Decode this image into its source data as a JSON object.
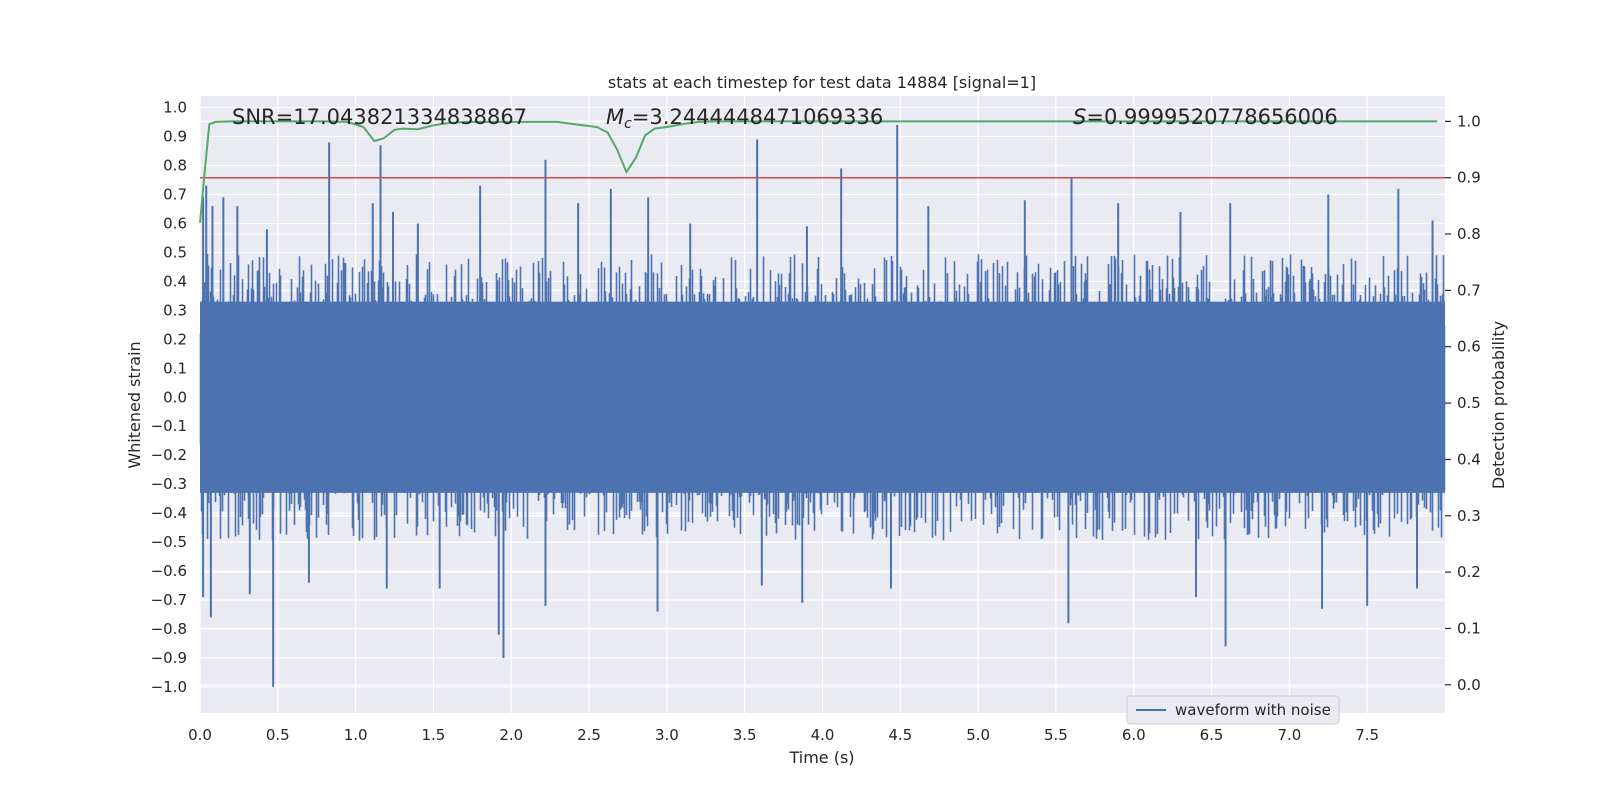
{
  "chart_data": {
    "type": "line",
    "title": "stats at each timestep for test data 14884 [signal=1]",
    "xlabel": "Time (s)",
    "ylabel_left": "Whitened strain",
    "ylabel_right": "Detection probability",
    "xlim": [
      0.0,
      8.0
    ],
    "ylim_left": [
      -1.09,
      1.04
    ],
    "ylim_right": [
      -0.05,
      1.045
    ],
    "x_ticks": [
      "0.0",
      "0.5",
      "1.0",
      "1.5",
      "2.0",
      "2.5",
      "3.0",
      "3.5",
      "4.0",
      "4.5",
      "5.0",
      "5.5",
      "6.0",
      "6.5",
      "7.0",
      "7.5"
    ],
    "y_ticks_left": [
      "1.0",
      "0.9",
      "0.8",
      "0.7",
      "0.6",
      "0.5",
      "0.4",
      "0.3",
      "0.2",
      "0.1",
      "0.0",
      "−0.1",
      "−0.2",
      "−0.3",
      "−0.4",
      "−0.5",
      "−0.6",
      "−0.7",
      "−0.8",
      "−0.9",
      "−1.0"
    ],
    "y_ticks_right": [
      "1.0",
      "0.9",
      "0.8",
      "0.7",
      "0.6",
      "0.5",
      "0.4",
      "0.3",
      "0.2",
      "0.1",
      "0.0"
    ],
    "grid": true,
    "annotations": {
      "snr": "SNR=17.043821334838867",
      "mc_symbol": "M",
      "mc_sub": "c",
      "mc_value": "=3.2444448471069336",
      "s_symbol": "S",
      "s_value": "=0.9999520778656006"
    },
    "threshold": {
      "value": 0.9,
      "axis": "right",
      "color": "#c44e52"
    },
    "series": [
      {
        "name": "waveform with noise",
        "axis": "left",
        "color": "#4c72b0",
        "style": "dense-noise",
        "typical_amplitude": 0.45,
        "spikes": [
          {
            "x": 0.02,
            "y": 0.69
          },
          {
            "x": 0.04,
            "y": 0.73
          },
          {
            "x": 0.08,
            "y": 0.66
          },
          {
            "x": 0.15,
            "y": 0.69
          },
          {
            "x": 0.24,
            "y": 0.66
          },
          {
            "x": 0.43,
            "y": 0.58
          },
          {
            "x": 0.83,
            "y": 0.88
          },
          {
            "x": 1.11,
            "y": 0.67
          },
          {
            "x": 1.16,
            "y": 0.87
          },
          {
            "x": 1.24,
            "y": 0.64
          },
          {
            "x": 1.4,
            "y": 0.6
          },
          {
            "x": 1.8,
            "y": 0.73
          },
          {
            "x": 2.22,
            "y": 0.82
          },
          {
            "x": 2.43,
            "y": 0.67
          },
          {
            "x": 2.64,
            "y": 0.72
          },
          {
            "x": 2.88,
            "y": 0.69
          },
          {
            "x": 3.15,
            "y": 0.6
          },
          {
            "x": 3.58,
            "y": 0.89
          },
          {
            "x": 3.9,
            "y": 0.59
          },
          {
            "x": 4.12,
            "y": 0.79
          },
          {
            "x": 4.48,
            "y": 0.94
          },
          {
            "x": 4.68,
            "y": 0.66
          },
          {
            "x": 5.3,
            "y": 0.68
          },
          {
            "x": 5.6,
            "y": 0.76
          },
          {
            "x": 5.9,
            "y": 0.67
          },
          {
            "x": 6.3,
            "y": 0.64
          },
          {
            "x": 6.62,
            "y": 0.67
          },
          {
            "x": 7.25,
            "y": 0.7
          },
          {
            "x": 7.7,
            "y": 0.72
          },
          {
            "x": 7.92,
            "y": 0.61
          },
          {
            "x": 0.02,
            "y": -0.69
          },
          {
            "x": 0.07,
            "y": -0.76
          },
          {
            "x": 0.32,
            "y": -0.68
          },
          {
            "x": 0.47,
            "y": -1.0
          },
          {
            "x": 0.7,
            "y": -0.64
          },
          {
            "x": 1.2,
            "y": -0.66
          },
          {
            "x": 1.54,
            "y": -0.66
          },
          {
            "x": 1.92,
            "y": -0.82
          },
          {
            "x": 1.95,
            "y": -0.9
          },
          {
            "x": 2.22,
            "y": -0.72
          },
          {
            "x": 2.94,
            "y": -0.74
          },
          {
            "x": 3.61,
            "y": -0.65
          },
          {
            "x": 3.87,
            "y": -0.71
          },
          {
            "x": 4.44,
            "y": -0.66
          },
          {
            "x": 5.58,
            "y": -0.78
          },
          {
            "x": 6.4,
            "y": -0.69
          },
          {
            "x": 6.59,
            "y": -0.86
          },
          {
            "x": 7.21,
            "y": -0.73
          },
          {
            "x": 7.5,
            "y": -0.72
          },
          {
            "x": 7.82,
            "y": -0.66
          }
        ]
      },
      {
        "name": "",
        "axis": "right",
        "color": "#55a868",
        "x": [
          0.0,
          0.03,
          0.06,
          0.1,
          0.2,
          0.5,
          0.8,
          0.95,
          1.05,
          1.12,
          1.18,
          1.25,
          1.3,
          1.4,
          1.5,
          1.6,
          1.7,
          2.0,
          2.3,
          2.4,
          2.55,
          2.62,
          2.68,
          2.74,
          2.8,
          2.86,
          2.92,
          3.0,
          3.1,
          3.2,
          3.3,
          3.5,
          4.0,
          5.0,
          6.0,
          7.0,
          7.95
        ],
        "y": [
          0.82,
          0.91,
          0.995,
          0.999,
          1.0,
          1.0,
          1.0,
          0.999,
          0.99,
          0.965,
          0.97,
          0.985,
          0.987,
          0.986,
          0.993,
          0.997,
          0.999,
          0.999,
          0.999,
          0.995,
          0.99,
          0.98,
          0.95,
          0.91,
          0.935,
          0.975,
          0.987,
          0.99,
          0.995,
          0.999,
          1.0,
          1.0,
          1.0,
          1.0,
          1.0,
          1.0,
          1.0
        ]
      }
    ],
    "legend": {
      "position": "lower-right",
      "entries": [
        "waveform with noise"
      ]
    },
    "colors": {
      "plot_bg": "#eaeaf2",
      "grid": "#ffffff",
      "text": "#262626",
      "legend_bg": "#eaeaf2"
    }
  }
}
